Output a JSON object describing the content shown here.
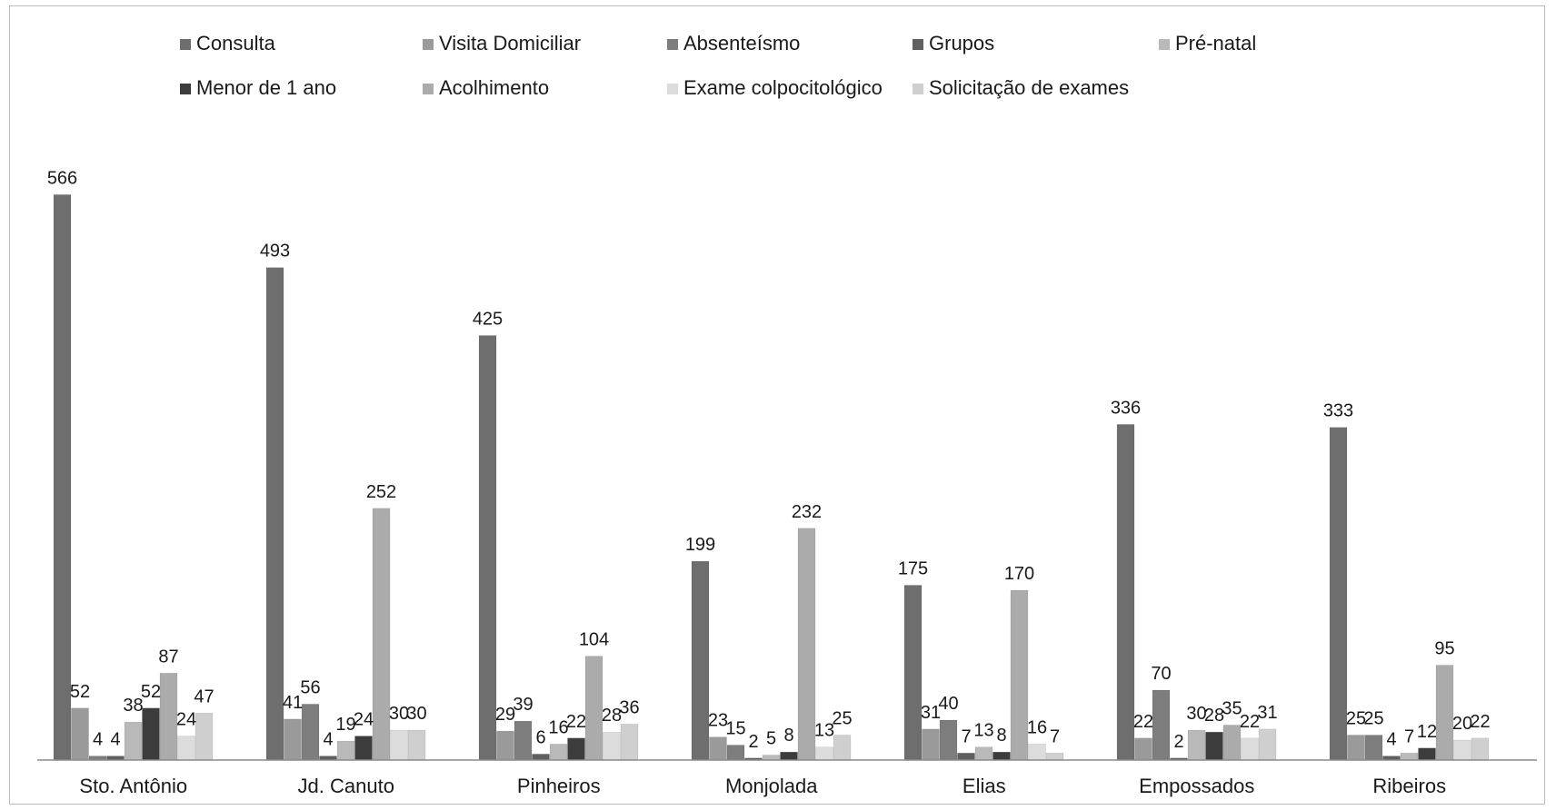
{
  "chart_data": {
    "type": "bar",
    "categories": [
      "Sto. Antônio",
      "Jd. Canuto",
      "Pinheiros",
      "Monjolada",
      "Elias",
      "Empossados",
      "Ribeiros"
    ],
    "series": [
      {
        "name": "Consulta",
        "color": "#6e6e6e",
        "values": [
          566,
          493,
          425,
          199,
          175,
          336,
          333
        ]
      },
      {
        "name": "Visita Domiciliar",
        "color": "#9a9a9a",
        "values": [
          52,
          41,
          29,
          23,
          31,
          22,
          25
        ]
      },
      {
        "name": "Absenteísmo",
        "color": "#7d7d7d",
        "values": [
          4,
          56,
          39,
          15,
          40,
          70,
          25
        ]
      },
      {
        "name": "Grupos",
        "color": "#5f5f5f",
        "values": [
          4,
          4,
          6,
          2,
          7,
          2,
          4
        ]
      },
      {
        "name": "Pré-natal",
        "color": "#b9b9b9",
        "values": [
          38,
          19,
          16,
          5,
          13,
          30,
          7
        ]
      },
      {
        "name": "Menor de 1 ano",
        "color": "#3c3c3c",
        "values": [
          52,
          24,
          22,
          8,
          8,
          28,
          12
        ]
      },
      {
        "name": "Acolhimento",
        "color": "#ababab",
        "values": [
          87,
          252,
          104,
          232,
          170,
          35,
          95
        ]
      },
      {
        "name": "Exame colpocitológico",
        "color": "#dcdcdc",
        "values": [
          24,
          30,
          28,
          13,
          16,
          22,
          20
        ]
      },
      {
        "name": "Solicitação de exames",
        "color": "#cfcfcf",
        "values": [
          47,
          30,
          36,
          25,
          7,
          31,
          22
        ]
      }
    ],
    "ylim": [
      0,
      600
    ],
    "grid": false,
    "legend_position": "top"
  }
}
